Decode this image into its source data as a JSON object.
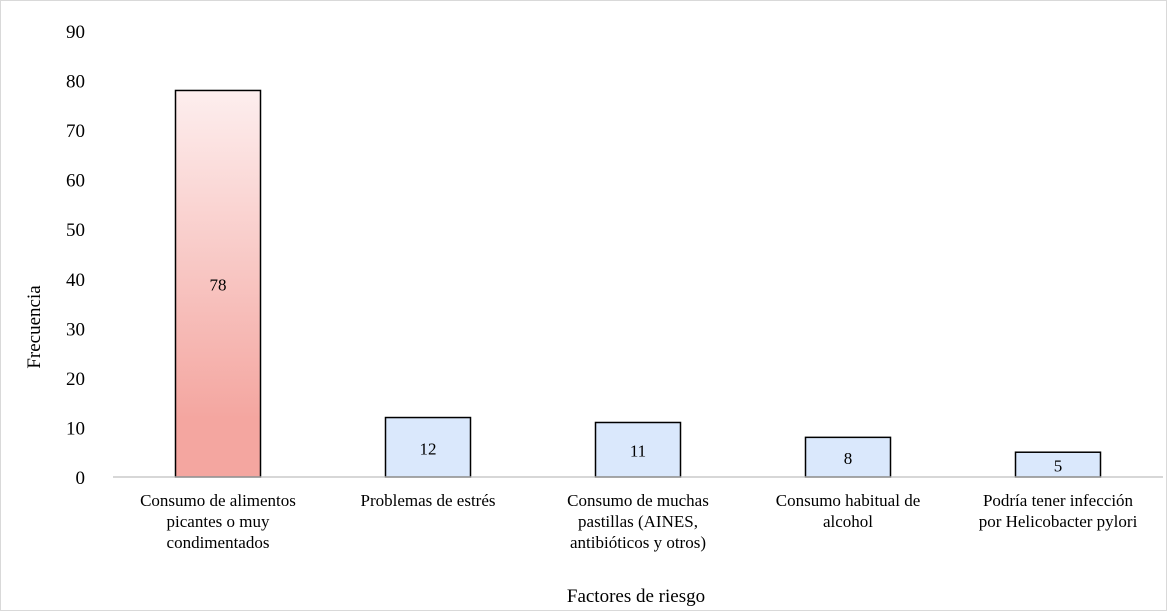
{
  "chart_data": {
    "type": "bar",
    "title": "",
    "xlabel": "Factores de riesgo",
    "ylabel": "Frecuencia",
    "ylim": [
      0,
      90
    ],
    "yticks": [
      0,
      10,
      20,
      30,
      40,
      50,
      60,
      70,
      80,
      90
    ],
    "grid": false,
    "legend": "none",
    "categories": [
      [
        "Consumo de alimentos",
        "picantes o muy",
        "condimentados"
      ],
      [
        "Problemas de estrés"
      ],
      [
        "Consumo de muchas",
        "pastillas (AINES,",
        "antibióticos y otros)"
      ],
      [
        "Consumo habitual de",
        "alcohol"
      ],
      [
        "Podría tener infección",
        "por Helicobacter pylori"
      ]
    ],
    "values": [
      78,
      12,
      11,
      8,
      5
    ],
    "data_labels": [
      "78",
      "12",
      "11",
      "8",
      "5"
    ],
    "bar_fills": [
      "red-gradient",
      "#dae8fc",
      "#dae8fc",
      "#dae8fc",
      "#dae8fc"
    ],
    "colors": {
      "highlight_light": "#fdeeee",
      "highlight_dark": "#f4a6a0",
      "bar_default": "#dae8fc",
      "bar_border": "#000000",
      "axis": "#bfbfbf"
    }
  }
}
